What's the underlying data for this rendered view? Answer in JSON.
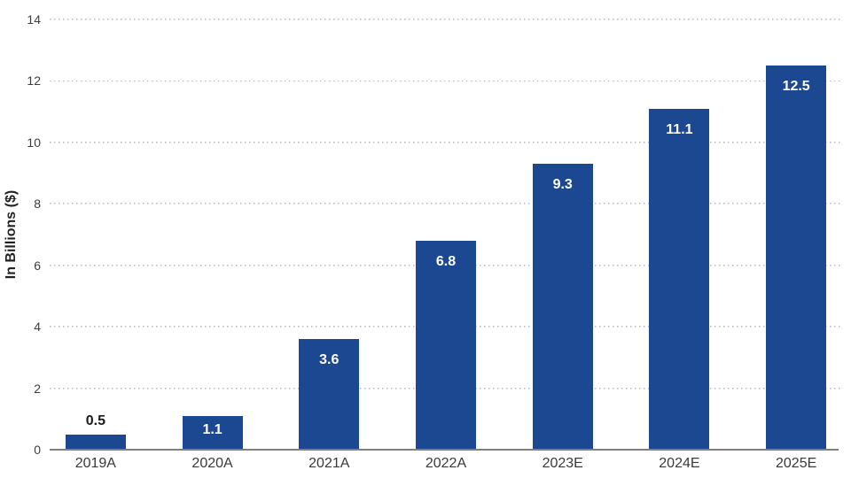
{
  "chart_data": {
    "type": "bar",
    "title": "",
    "xlabel": "",
    "ylabel": "In Billions ($)",
    "categories": [
      "2019A",
      "2020A",
      "2021A",
      "2022A",
      "2023E",
      "2024E",
      "2025E"
    ],
    "values": [
      0.5,
      1.1,
      3.6,
      6.8,
      9.3,
      11.1,
      12.5
    ],
    "value_labels": [
      "0.5",
      "1.1",
      "3.6",
      "6.8",
      "9.3",
      "11.1",
      "12.5"
    ],
    "ylim": [
      0,
      14
    ],
    "yticks": [
      0,
      2,
      4,
      6,
      8,
      10,
      12,
      14
    ],
    "grid": "horizontal-dotted",
    "legend": "none",
    "colors": {
      "bar": "#1b4891",
      "label_inside": "#ffffff",
      "label_outside": "#1a1a1a",
      "axis_line": "#7f7f7f",
      "gridline": "#bcbcbc",
      "tick_text": "#3d3d3d"
    },
    "outside_label_threshold": 1.0
  }
}
